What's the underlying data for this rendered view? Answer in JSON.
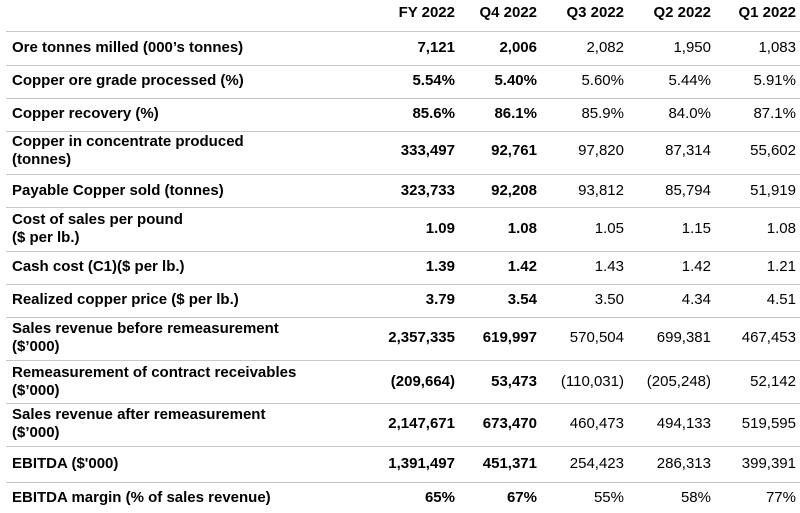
{
  "table": {
    "header": [
      "FY 2022",
      "Q4 2022",
      "Q3 2022",
      "Q2 2022",
      "Q1 2022"
    ],
    "rows": [
      {
        "label": [
          "Ore tonnes milled (000’s tonnes)"
        ],
        "cells": [
          "7,121",
          "2,006",
          "2,082",
          "1,950",
          "1,083"
        ]
      },
      {
        "label": [
          "Copper ore grade processed (%)"
        ],
        "cells": [
          "5.54%",
          "5.40%",
          "5.60%",
          "5.44%",
          "5.91%"
        ]
      },
      {
        "label": [
          "Copper recovery (%)"
        ],
        "cells": [
          "85.6%",
          "86.1%",
          "85.9%",
          "84.0%",
          "87.1%"
        ]
      },
      {
        "label": [
          "Copper in concentrate produced",
          "(tonnes)"
        ],
        "cells": [
          "333,497",
          "92,761",
          "97,820",
          "87,314",
          "55,602"
        ]
      },
      {
        "label": [
          "Payable Copper sold (tonnes)"
        ],
        "cells": [
          "323,733",
          "92,208",
          "93,812",
          "85,794",
          "51,919"
        ]
      },
      {
        "label": [
          "Cost of sales per pound",
          "($ per lb.)"
        ],
        "cells": [
          "1.09",
          "1.08",
          "1.05",
          "1.15",
          "1.08"
        ]
      },
      {
        "label": [
          "Cash cost (C1)($ per lb.)"
        ],
        "cells": [
          "1.39",
          "1.42",
          "1.43",
          "1.42",
          "1.21"
        ]
      },
      {
        "label": [
          "Realized copper price ($ per lb.)"
        ],
        "cells": [
          "3.79",
          "3.54",
          "3.50",
          "4.34",
          "4.51"
        ]
      },
      {
        "label": [
          "Sales revenue before remeasurement",
          "($’000)"
        ],
        "cells": [
          "2,357,335",
          "619,997",
          "570,504",
          "699,381",
          "467,453"
        ]
      },
      {
        "label": [
          "Remeasurement of contract receivables",
          "($’000)"
        ],
        "cells": [
          "(209,664)",
          "53,473",
          "(110,031)",
          "(205,248)",
          "52,142"
        ]
      },
      {
        "label": [
          "Sales revenue after remeasurement",
          "($’000)"
        ],
        "cells": [
          "2,147,671",
          "673,470",
          "460,473",
          "494,133",
          "519,595"
        ]
      },
      {
        "label": [
          "EBITDA ($'000)"
        ],
        "cells": [
          "1,391,497",
          "451,371",
          "254,423",
          "286,313",
          "399,391"
        ]
      },
      {
        "label": [
          "EBITDA margin (% of sales revenue)"
        ],
        "cells": [
          "65%",
          "67%",
          "55%",
          "58%",
          "77%"
        ]
      }
    ]
  }
}
